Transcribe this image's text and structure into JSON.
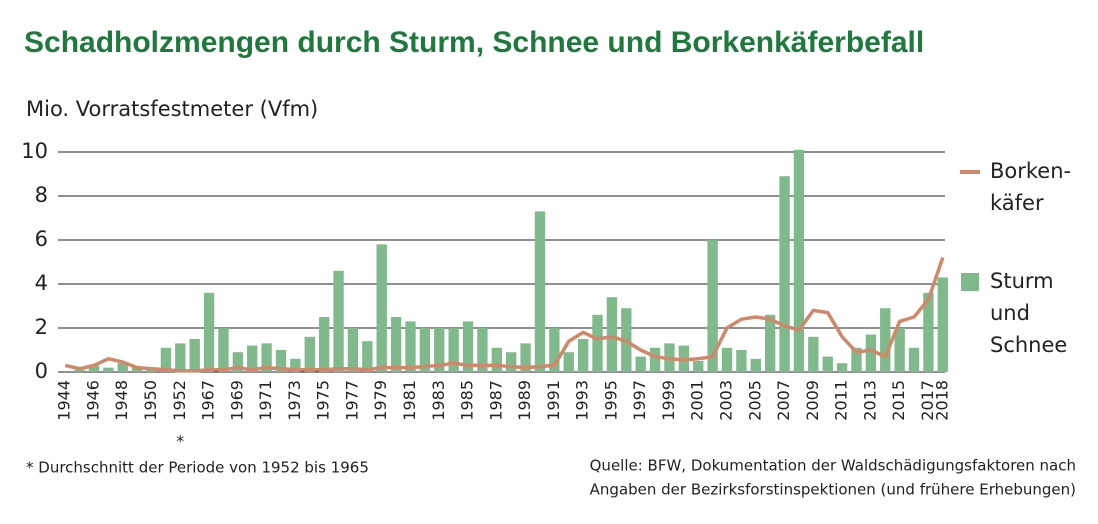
{
  "chart_data": {
    "type": "bar_line",
    "title": "Schadholzmengen durch Sturm, Schnee und Borkenkäferbefall",
    "y_label": "Mio. Vorratsfestmeter (Vfm)",
    "categories": [
      "1944",
      null,
      "1946",
      null,
      "1948",
      null,
      "1950",
      null,
      "1952",
      null,
      "1967",
      null,
      "1969",
      null,
      "1971",
      null,
      "1973",
      null,
      "1975",
      null,
      "1977",
      null,
      "1979",
      null,
      "1981",
      null,
      "1983",
      null,
      "1985",
      null,
      "1987",
      null,
      "1989",
      null,
      "1991",
      null,
      "1993",
      null,
      "1995",
      null,
      "1997",
      null,
      "1999",
      null,
      "2001",
      null,
      "2003",
      null,
      "2005",
      null,
      "2007",
      null,
      "2009",
      null,
      "2011",
      null,
      "2013",
      null,
      "2015",
      null,
      "2017",
      "2018"
    ],
    "category_marker": "*",
    "series": [
      {
        "name": [
          "Sturm",
          "und",
          "Schnee"
        ],
        "kind": "bar",
        "color": "#80b98c",
        "values": [
          0,
          0.1,
          0.3,
          0.2,
          0.4,
          0.2,
          0.2,
          1.1,
          1.3,
          1.5,
          3.6,
          2.0,
          0.9,
          1.2,
          1.3,
          1.0,
          0.6,
          1.6,
          2.5,
          4.6,
          2.0,
          1.4,
          5.8,
          2.5,
          2.3,
          2.0,
          2.0,
          2.0,
          2.3,
          2.0,
          1.1,
          0.9,
          1.3,
          7.3,
          2.0,
          0.9,
          1.5,
          2.6,
          3.4,
          2.9,
          0.7,
          1.1,
          1.3,
          1.2,
          0.5,
          6.0,
          1.1,
          1.0,
          0.6,
          2.6,
          8.9,
          10.1,
          1.6,
          0.7,
          0.4,
          1.1,
          1.7,
          2.9,
          2.0,
          1.1,
          3.6,
          4.3
        ]
      },
      {
        "name": [
          "Borken-",
          "käfer"
        ],
        "kind": "line",
        "color": "#d0876a",
        "values": [
          0.3,
          0.15,
          0.3,
          0.6,
          0.45,
          0.2,
          0.15,
          0.1,
          0.05,
          0.05,
          0.1,
          0.1,
          0.2,
          0.1,
          0.2,
          0.15,
          0.1,
          0.1,
          0.1,
          0.15,
          0.15,
          0.1,
          0.2,
          0.2,
          0.2,
          0.25,
          0.3,
          0.4,
          0.3,
          0.3,
          0.3,
          0.25,
          0.2,
          0.25,
          0.3,
          1.4,
          1.8,
          1.5,
          1.6,
          1.4,
          1.0,
          0.7,
          0.6,
          0.55,
          0.6,
          0.7,
          2.0,
          2.4,
          2.5,
          2.4,
          2.1,
          1.9,
          2.8,
          2.7,
          1.6,
          0.9,
          1.0,
          0.7,
          2.3,
          2.5,
          3.3,
          5.2
        ]
      }
    ],
    "ylim": [
      0,
      10.5
    ],
    "yticks": [
      0,
      2,
      4,
      6,
      8,
      10
    ],
    "grid": true,
    "footnote": "* Durchschnitt der Periode von 1952 bis 1965",
    "source": [
      "Quelle: BFW, Dokumentation der Waldschädigungsfaktoren nach",
      "Angaben der Bezirksforstinspektionen (und frühere Erhebungen)"
    ]
  }
}
